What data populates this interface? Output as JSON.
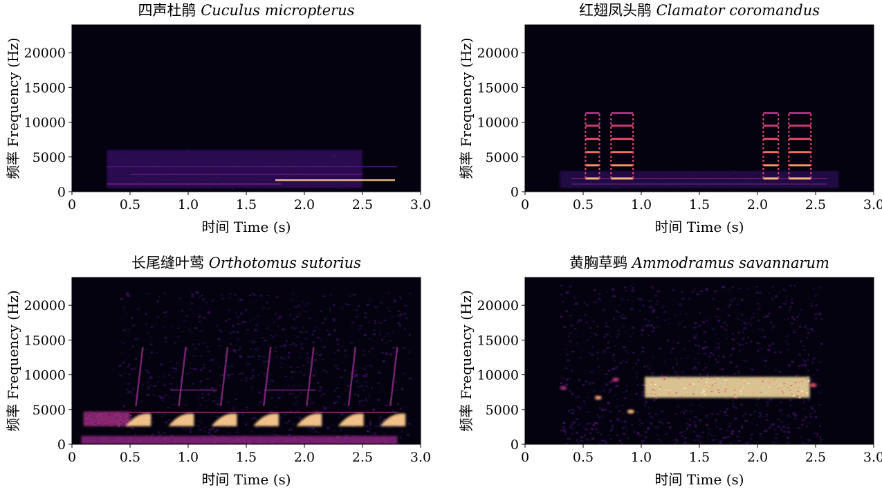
{
  "chart_data": [
    {
      "type": "heatmap",
      "title_zh": "四声杜鹃",
      "title_latin": "Cuculus micropterus",
      "xlabel": "时间 Time (s)",
      "ylabel": "频率 Frequency (Hz)",
      "xlim": [
        0,
        3.0
      ],
      "ylim": [
        0,
        24000
      ],
      "xticks": [
        "0",
        "0.5",
        "1.0",
        "1.5",
        "2.0",
        "2.5",
        "3.0"
      ],
      "yticks": [
        "0",
        "5000",
        "10000",
        "15000",
        "20000"
      ],
      "features": [
        {
          "kind": "band",
          "t0": 0.3,
          "t1": 2.5,
          "f0": 500,
          "f1": 6000,
          "intensity": 0.18
        },
        {
          "kind": "line",
          "t0": 0.3,
          "t1": 2.8,
          "f": 3600,
          "intensity": 0.25
        },
        {
          "kind": "line",
          "t0": 0.5,
          "t1": 2.5,
          "f": 2500,
          "intensity": 0.3
        },
        {
          "kind": "line",
          "t0": 0.3,
          "t1": 1.8,
          "f": 1100,
          "intensity": 0.35
        },
        {
          "kind": "line",
          "t0": 1.75,
          "t1": 2.78,
          "f": 1650,
          "intensity": 0.9
        },
        {
          "kind": "line",
          "t0": 0.6,
          "t1": 2.4,
          "f": 4800,
          "intensity": 0.15
        }
      ]
    },
    {
      "type": "heatmap",
      "title_zh": "红翅凤头鹃",
      "title_latin": "Clamator coromandus",
      "xlabel": "时间 Time (s)",
      "ylabel": "频率 Frequency (Hz)",
      "xlim": [
        0,
        3.0
      ],
      "ylim": [
        0,
        24000
      ],
      "xticks": [
        "0",
        "0.5",
        "1.0",
        "1.5",
        "2.0",
        "2.5",
        "3.0"
      ],
      "yticks": [
        "0",
        "5000",
        "10000",
        "15000",
        "20000"
      ],
      "features": [
        {
          "kind": "band",
          "t0": 0.3,
          "t1": 2.7,
          "f0": 500,
          "f1": 3000,
          "intensity": 0.15
        },
        {
          "kind": "line",
          "t0": 0.4,
          "t1": 2.6,
          "f": 1900,
          "intensity": 0.35
        },
        {
          "kind": "line",
          "t0": 0.4,
          "t1": 2.6,
          "f": 1100,
          "intensity": 0.3
        },
        {
          "kind": "stack",
          "t0": 0.52,
          "t1": 0.64,
          "harmonics": [
            1900,
            3800,
            5700,
            7600,
            9500,
            11300
          ],
          "intensity": 0.85
        },
        {
          "kind": "stack",
          "t0": 0.74,
          "t1": 0.93,
          "harmonics": [
            1900,
            3800,
            5700,
            7600,
            9500,
            11300
          ],
          "intensity": 0.85
        },
        {
          "kind": "stack",
          "t0": 2.05,
          "t1": 2.18,
          "harmonics": [
            1900,
            3800,
            5700,
            7600,
            9500,
            11300
          ],
          "intensity": 0.85
        },
        {
          "kind": "stack",
          "t0": 2.27,
          "t1": 2.46,
          "harmonics": [
            1900,
            3800,
            5700,
            7600,
            9500,
            11300
          ],
          "intensity": 0.85
        }
      ]
    },
    {
      "type": "heatmap",
      "title_zh": "长尾缝叶莺",
      "title_latin": "Orthotomus sutorius",
      "xlabel": "时间 Time (s)",
      "ylabel": "频率 Frequency (Hz)",
      "xlim": [
        0,
        3.0
      ],
      "ylim": [
        0,
        24000
      ],
      "xticks": [
        "0",
        "0.5",
        "1.0",
        "1.5",
        "2.0",
        "2.5",
        "3.0"
      ],
      "yticks": [
        "0",
        "5000",
        "10000",
        "15000",
        "20000"
      ],
      "features": [
        {
          "kind": "noise",
          "t0": 0.4,
          "t1": 2.9,
          "f0": 0,
          "f1": 22000,
          "intensity": 0.18
        },
        {
          "kind": "band",
          "t0": 0.08,
          "t1": 2.8,
          "f0": 0,
          "f1": 1200,
          "intensity": 0.4
        },
        {
          "kind": "band",
          "t0": 0.1,
          "t1": 0.5,
          "f0": 2600,
          "f1": 4700,
          "intensity": 0.45
        },
        {
          "kind": "line",
          "t0": 0.5,
          "t1": 2.8,
          "f": 4600,
          "intensity": 0.45
        },
        {
          "kind": "line",
          "t0": 0.85,
          "t1": 1.25,
          "f": 7800,
          "intensity": 0.35
        },
        {
          "kind": "line",
          "t0": 1.65,
          "t1": 2.1,
          "f": 7800,
          "intensity": 0.35
        },
        {
          "kind": "sweep",
          "times": [
            0.53,
            0.9,
            1.27,
            1.63,
            2.0,
            2.36,
            2.72
          ],
          "f0": 2600,
          "f1": 4700,
          "intensity": 0.9
        },
        {
          "kind": "streak",
          "times": [
            0.55,
            0.92,
            1.28,
            1.65,
            2.02,
            2.38,
            2.74
          ],
          "f0": 5500,
          "f1": 14000,
          "intensity": 0.4
        }
      ]
    },
    {
      "type": "heatmap",
      "title_zh": "黄胸草鹀",
      "title_latin": "Ammodramus savannarum",
      "xlabel": "时间 Time (s)",
      "ylabel": "频率 Frequency (Hz)",
      "xlim": [
        0,
        3.0
      ],
      "ylim": [
        0,
        24000
      ],
      "xticks": [
        "0",
        "0.5",
        "1.0",
        "1.5",
        "2.0",
        "2.5",
        "3.0"
      ],
      "yticks": [
        "0",
        "5000",
        "10000",
        "15000",
        "20000"
      ],
      "features": [
        {
          "kind": "noise",
          "t0": 0.3,
          "t1": 2.55,
          "f0": 0,
          "f1": 23000,
          "intensity": 0.2
        },
        {
          "kind": "blob",
          "t": 0.33,
          "f": 8100,
          "intensity": 0.45
        },
        {
          "kind": "blob",
          "t": 0.63,
          "f": 6700,
          "intensity": 0.8
        },
        {
          "kind": "blob",
          "t": 0.78,
          "f": 9300,
          "intensity": 0.5
        },
        {
          "kind": "blob",
          "t": 0.91,
          "f": 4700,
          "intensity": 0.85
        },
        {
          "kind": "band",
          "t0": 1.03,
          "t1": 2.45,
          "f0": 6700,
          "f1": 9700,
          "intensity": 0.95
        },
        {
          "kind": "blob",
          "t": 2.48,
          "f": 8500,
          "intensity": 0.6
        }
      ]
    }
  ]
}
